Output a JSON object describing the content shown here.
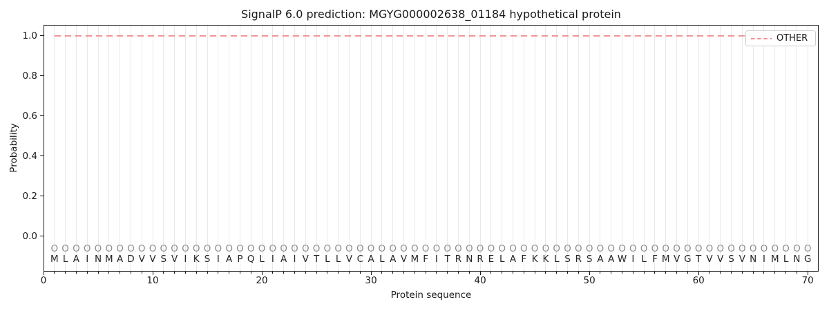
{
  "figure": {
    "title": "SignalP 6.0 prediction: MGYG000002638_01184 hypothetical protein"
  },
  "chart_data": {
    "type": "line",
    "title": "SignalP 6.0 prediction: MGYG000002638_01184 hypothetical protein",
    "xlabel": "Protein sequence",
    "ylabel": "Probability",
    "xlim": [
      0,
      71
    ],
    "ylim": [
      -0.176,
      1.055
    ],
    "x_ticks": [
      0,
      10,
      20,
      30,
      40,
      50,
      60,
      70
    ],
    "y_ticks": [
      "0.0",
      "0.2",
      "0.4",
      "0.6",
      "0.8",
      "1.0"
    ],
    "grid": "light vertical gridline at every residue position 1-70",
    "legend": {
      "position": "upper right",
      "entries": [
        "OTHER"
      ]
    },
    "series": [
      {
        "name": "OTHER",
        "type": "line",
        "style": "dashed",
        "color": "#f08080",
        "x_start": 1,
        "x_end": 70,
        "constant_value": 1.0
      }
    ],
    "sequence": "MLAINMADVVSVIKSIAPQLIAIVTLLVCALAVMFITRNRELAFKKLSRSAAWILFMVGTVVSVNIMLNG",
    "sequence_length": 70,
    "per_position_mark": "O"
  },
  "colors": {
    "other_line": "#f08080",
    "grid": "#e9e9e9",
    "mark": "#8c8c8c",
    "residue": "#262626",
    "spine": "#1a1a1a",
    "background": "#ffffff"
  }
}
